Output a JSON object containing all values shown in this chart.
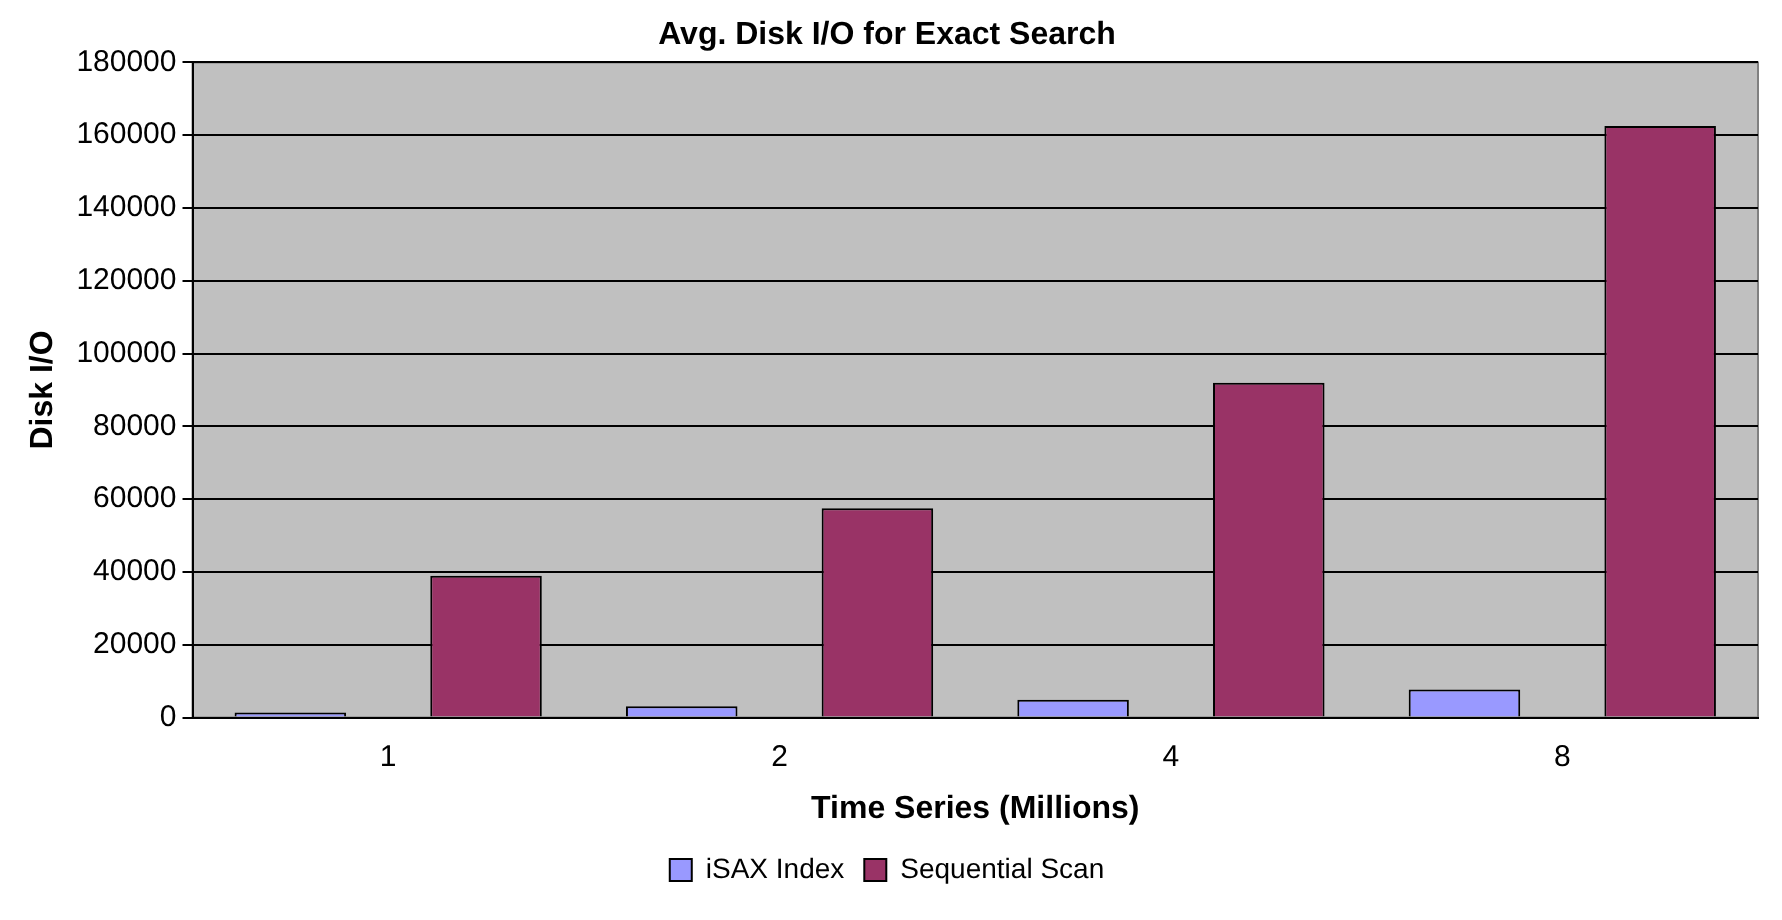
{
  "chart_data": {
    "type": "bar",
    "title": "Avg. Disk I/O for Exact Search",
    "xlabel": "Time Series (Millions)",
    "ylabel": "Disk I/O",
    "categories": [
      "1",
      "2",
      "4",
      "8"
    ],
    "series": [
      {
        "name": "iSAX Index",
        "color": "#9999ff",
        "values": [
          1400,
          3100,
          4900,
          7700
        ]
      },
      {
        "name": "Sequential Scan",
        "color": "#993366",
        "values": [
          39000,
          57500,
          92000,
          162500
        ]
      }
    ],
    "ylim": [
      0,
      180000
    ],
    "yticks": [
      0,
      20000,
      40000,
      60000,
      80000,
      100000,
      120000,
      140000,
      160000,
      180000
    ],
    "grid": "y",
    "legend": "bottom"
  }
}
